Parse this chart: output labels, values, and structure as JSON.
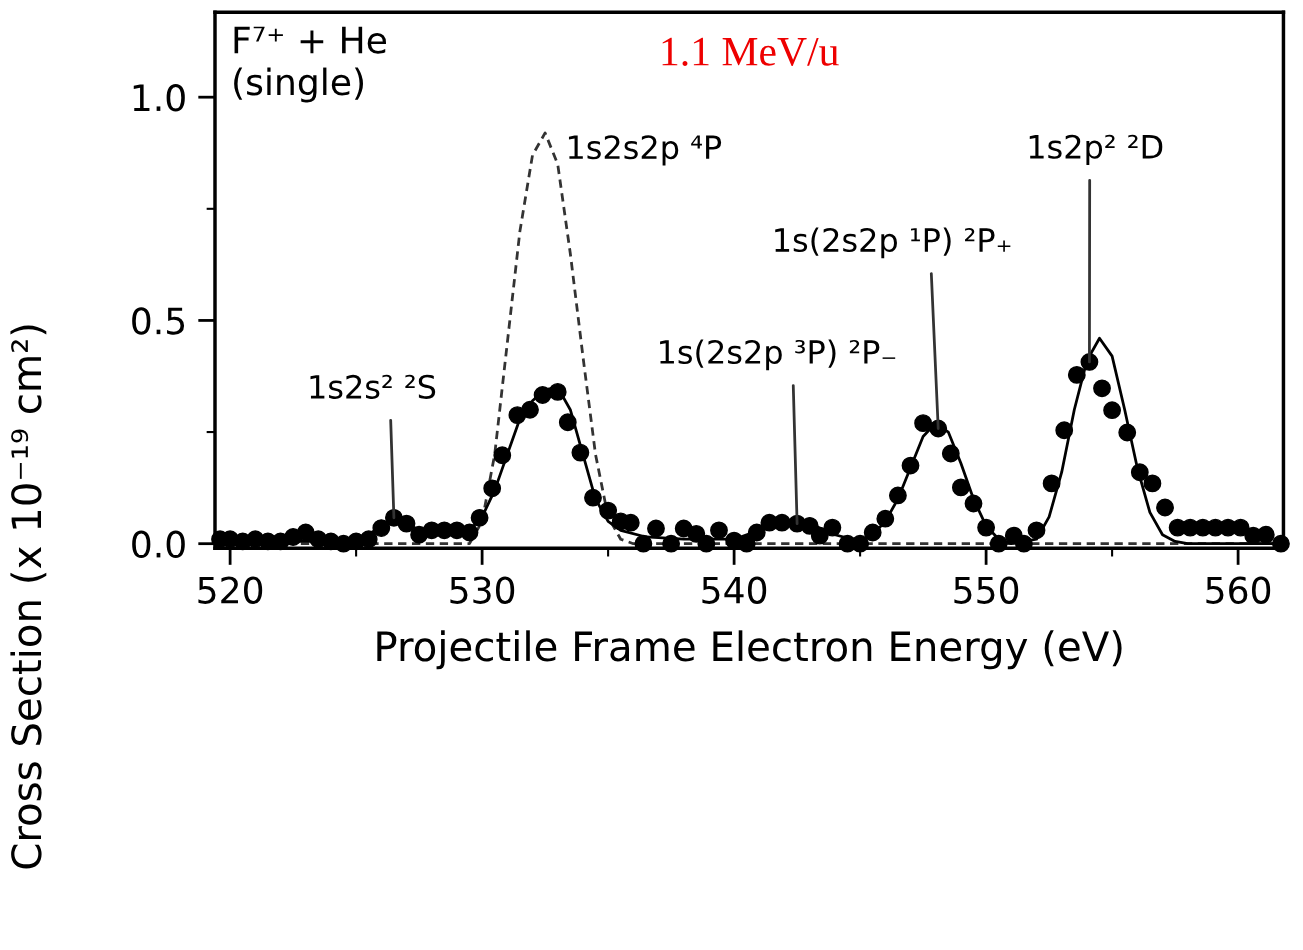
{
  "chart_data": {
    "type": "scatter",
    "title": "1.1 MeV/u",
    "xlabel": "Projectile Frame Electron Energy (eV)",
    "ylabel": "Cross Section (x 10⁻¹⁹ cm²)",
    "xlim": [
      519.4,
      561.8
    ],
    "xticks": [
      520,
      530,
      540,
      550,
      560
    ],
    "ylim": [
      -0.01,
      1.19
    ],
    "yticks": [
      {
        "value": 0,
        "label": "0.0"
      },
      {
        "value": 0.5,
        "label": "0.5"
      },
      {
        "value": 1.0,
        "label": "1.0"
      }
    ],
    "grid": false,
    "legend": false,
    "series": [
      {
        "type": "line",
        "color": "#333333",
        "line_style": "dashed",
        "x": [
          519.5,
          529.5,
          530.0,
          530.5,
          531.0,
          531.5,
          532.0,
          532.5,
          533.0,
          533.5,
          534.0,
          534.5,
          535.0,
          535.5,
          536.0,
          561.8
        ],
        "values": [
          0,
          0,
          0.05,
          0.2,
          0.45,
          0.7,
          0.87,
          0.92,
          0.85,
          0.65,
          0.42,
          0.2,
          0.06,
          0.01,
          0,
          0
        ]
      },
      {
        "type": "line",
        "color": "#000000",
        "line_style": "solid",
        "x": [
          519.5,
          524.0,
          525.5,
          526.5,
          527.5,
          528.5,
          529.5,
          530.0,
          530.5,
          531.0,
          531.5,
          532.0,
          532.5,
          533.0,
          533.5,
          534.0,
          534.5,
          535.0,
          535.5,
          536.5,
          538.0,
          540.0,
          541.0,
          542.0,
          543.0,
          544.0,
          545.0,
          545.5,
          546.0,
          546.5,
          547.0,
          547.5,
          548.0,
          548.5,
          549.0,
          549.5,
          550.0,
          550.5,
          551.0,
          552.0,
          552.5,
          553.0,
          553.5,
          554.0,
          554.5,
          555.0,
          555.5,
          556.0,
          556.5,
          557.0,
          557.5,
          558.0,
          561.8
        ],
        "values": [
          0.005,
          0.005,
          0.02,
          0.06,
          0.03,
          0.025,
          0.03,
          0.06,
          0.12,
          0.2,
          0.28,
          0.32,
          0.345,
          0.35,
          0.3,
          0.2,
          0.1,
          0.05,
          0.03,
          0.015,
          0.01,
          0.01,
          0.03,
          0.045,
          0.045,
          0.02,
          0.005,
          0.02,
          0.05,
          0.1,
          0.17,
          0.24,
          0.27,
          0.25,
          0.18,
          0.1,
          0.04,
          0.01,
          0.0,
          0.01,
          0.06,
          0.16,
          0.3,
          0.41,
          0.46,
          0.42,
          0.3,
          0.17,
          0.07,
          0.02,
          0.005,
          0,
          0
        ]
      },
      {
        "color": "#000000",
        "marker": "circle",
        "x": [
          519.6,
          520.0,
          520.5,
          521.0,
          521.5,
          522.0,
          522.5,
          523.0,
          523.5,
          524.0,
          524.5,
          525.0,
          525.5,
          526.0,
          526.5,
          527.0,
          527.5,
          528.0,
          528.5,
          529.0,
          529.5,
          529.9,
          530.4,
          530.8,
          531.4,
          531.9,
          532.4,
          533.0,
          533.4,
          533.9,
          534.4,
          535.0,
          535.5,
          535.9,
          536.4,
          536.9,
          537.5,
          538.0,
          538.5,
          538.9,
          539.4,
          540.0,
          540.5,
          540.9,
          541.4,
          541.9,
          542.5,
          543.0,
          543.4,
          543.9,
          544.5,
          545.0,
          545.5,
          546.0,
          546.5,
          547.0,
          547.5,
          548.1,
          548.6,
          549.0,
          549.5,
          550.0,
          550.5,
          551.1,
          551.5,
          552.0,
          552.6,
          553.1,
          553.6,
          554.1,
          554.6,
          555.0,
          555.6,
          556.1,
          556.6,
          557.1,
          557.6,
          558.1,
          558.6,
          559.1,
          559.6,
          560.1,
          560.6,
          561.1,
          561.7
        ],
        "values": [
          0.01,
          0.01,
          0.005,
          0.01,
          0.005,
          0.005,
          0.015,
          0.025,
          0.01,
          0.005,
          0.0,
          0.005,
          0.01,
          0.035,
          0.058,
          0.045,
          0.02,
          0.03,
          0.03,
          0.03,
          0.025,
          0.058,
          0.124,
          0.198,
          0.288,
          0.3,
          0.333,
          0.34,
          0.272,
          0.204,
          0.103,
          0.074,
          0.05,
          0.047,
          0.0,
          0.034,
          0.0,
          0.034,
          0.022,
          0.0,
          0.03,
          0.007,
          0.0,
          0.025,
          0.047,
          0.047,
          0.045,
          0.04,
          0.018,
          0.036,
          0.0,
          0.0,
          0.025,
          0.056,
          0.108,
          0.175,
          0.27,
          0.258,
          0.202,
          0.126,
          0.09,
          0.036,
          0.0,
          0.018,
          0.0,
          0.03,
          0.135,
          0.254,
          0.378,
          0.407,
          0.348,
          0.299,
          0.249,
          0.16,
          0.135,
          0.081,
          0.036,
          0.036,
          0.036,
          0.036,
          0.036,
          0.036,
          0.018,
          0.02,
          0.0
        ]
      }
    ],
    "annotations": [
      "F⁷⁺ + He\n(single)",
      {
        "text": "1s2s² ²S",
        "x": 526.5,
        "y": 0.058
      },
      "1s2s2p ⁴P",
      {
        "text": "1s(2s2p ³P) ²P₋",
        "x": 542.5,
        "y": 0.045
      },
      {
        "text": "1s(2s2p ¹P) ²P₊",
        "x": 548.1,
        "y": 0.258
      },
      {
        "text": "1s2p² ²D",
        "x": 554.1,
        "y": 0.407
      }
    ]
  }
}
